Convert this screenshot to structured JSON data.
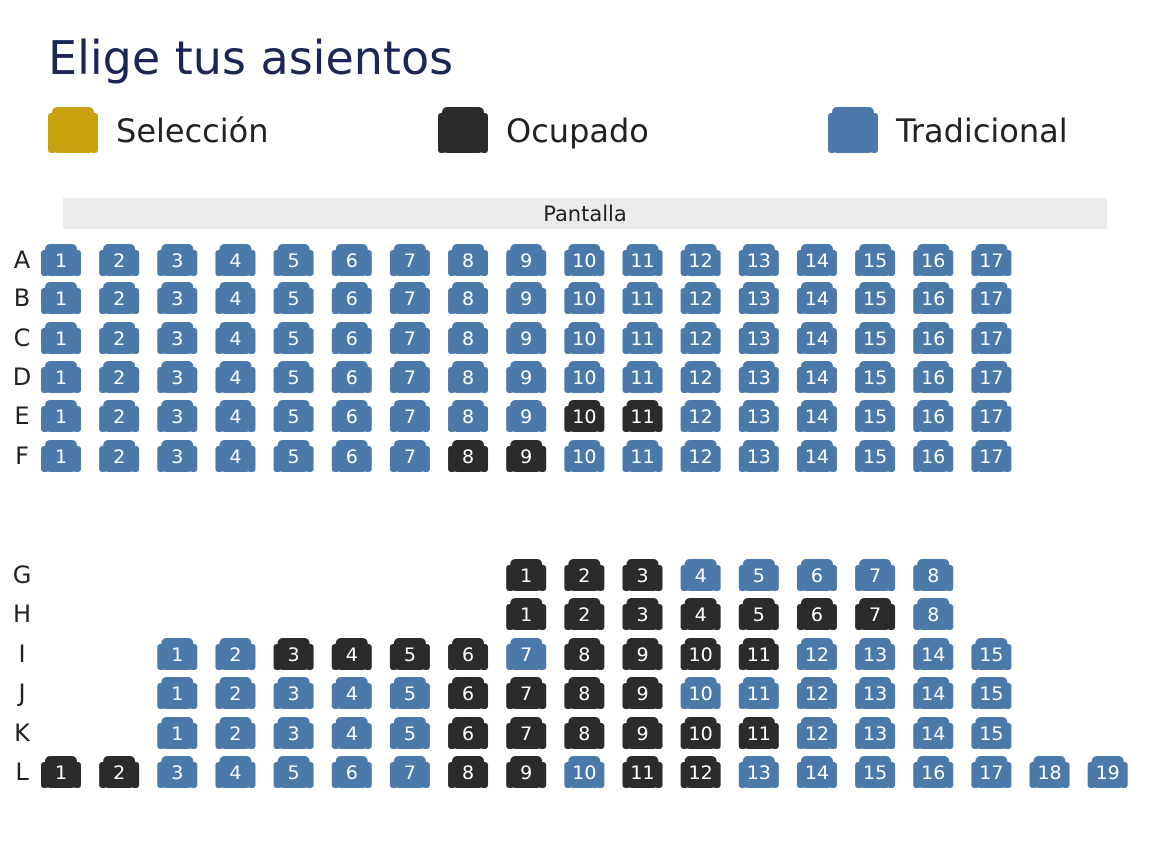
{
  "header": {
    "title": "Elige tus asientos"
  },
  "legend": [
    {
      "label": "Selección",
      "status": "selected"
    },
    {
      "label": "Ocupado",
      "status": "taken"
    },
    {
      "label": "Tradicional",
      "status": "free"
    }
  ],
  "colors": {
    "selected": "#c9a20f",
    "taken": "#2b2b2b",
    "free": "#4a79aa"
  },
  "screen": {
    "label": "Pantalla"
  },
  "rows": [
    {
      "label": "A",
      "seats": [
        {
          "number": 1,
          "status": "free"
        },
        {
          "number": 2,
          "status": "free"
        },
        {
          "number": 3,
          "status": "free"
        },
        {
          "number": 4,
          "status": "free"
        },
        {
          "number": 5,
          "status": "free"
        },
        {
          "number": 6,
          "status": "free"
        },
        {
          "number": 7,
          "status": "free"
        },
        {
          "number": 8,
          "status": "free"
        },
        {
          "number": 9,
          "status": "free"
        },
        {
          "number": 10,
          "status": "free"
        },
        {
          "number": 11,
          "status": "free"
        },
        {
          "number": 12,
          "status": "free"
        },
        {
          "number": 13,
          "status": "free"
        },
        {
          "number": 14,
          "status": "free"
        },
        {
          "number": 15,
          "status": "free"
        },
        {
          "number": 16,
          "status": "free"
        },
        {
          "number": 17,
          "status": "free"
        }
      ]
    },
    {
      "label": "B",
      "seats": [
        {
          "number": 1,
          "status": "free"
        },
        {
          "number": 2,
          "status": "free"
        },
        {
          "number": 3,
          "status": "free"
        },
        {
          "number": 4,
          "status": "free"
        },
        {
          "number": 5,
          "status": "free"
        },
        {
          "number": 6,
          "status": "free"
        },
        {
          "number": 7,
          "status": "free"
        },
        {
          "number": 8,
          "status": "free"
        },
        {
          "number": 9,
          "status": "free"
        },
        {
          "number": 10,
          "status": "free"
        },
        {
          "number": 11,
          "status": "free"
        },
        {
          "number": 12,
          "status": "free"
        },
        {
          "number": 13,
          "status": "free"
        },
        {
          "number": 14,
          "status": "free"
        },
        {
          "number": 15,
          "status": "free"
        },
        {
          "number": 16,
          "status": "free"
        },
        {
          "number": 17,
          "status": "free"
        }
      ]
    },
    {
      "label": "C",
      "seats": [
        {
          "number": 1,
          "status": "free"
        },
        {
          "number": 2,
          "status": "free"
        },
        {
          "number": 3,
          "status": "free"
        },
        {
          "number": 4,
          "status": "free"
        },
        {
          "number": 5,
          "status": "free"
        },
        {
          "number": 6,
          "status": "free"
        },
        {
          "number": 7,
          "status": "free"
        },
        {
          "number": 8,
          "status": "free"
        },
        {
          "number": 9,
          "status": "free"
        },
        {
          "number": 10,
          "status": "free"
        },
        {
          "number": 11,
          "status": "free"
        },
        {
          "number": 12,
          "status": "free"
        },
        {
          "number": 13,
          "status": "free"
        },
        {
          "number": 14,
          "status": "free"
        },
        {
          "number": 15,
          "status": "free"
        },
        {
          "number": 16,
          "status": "free"
        },
        {
          "number": 17,
          "status": "free"
        }
      ]
    },
    {
      "label": "D",
      "seats": [
        {
          "number": 1,
          "status": "free"
        },
        {
          "number": 2,
          "status": "free"
        },
        {
          "number": 3,
          "status": "free"
        },
        {
          "number": 4,
          "status": "free"
        },
        {
          "number": 5,
          "status": "free"
        },
        {
          "number": 6,
          "status": "free"
        },
        {
          "number": 7,
          "status": "free"
        },
        {
          "number": 8,
          "status": "free"
        },
        {
          "number": 9,
          "status": "free"
        },
        {
          "number": 10,
          "status": "free"
        },
        {
          "number": 11,
          "status": "free"
        },
        {
          "number": 12,
          "status": "free"
        },
        {
          "number": 13,
          "status": "free"
        },
        {
          "number": 14,
          "status": "free"
        },
        {
          "number": 15,
          "status": "free"
        },
        {
          "number": 16,
          "status": "free"
        },
        {
          "number": 17,
          "status": "free"
        }
      ]
    },
    {
      "label": "E",
      "seats": [
        {
          "number": 1,
          "status": "free"
        },
        {
          "number": 2,
          "status": "free"
        },
        {
          "number": 3,
          "status": "free"
        },
        {
          "number": 4,
          "status": "free"
        },
        {
          "number": 5,
          "status": "free"
        },
        {
          "number": 6,
          "status": "free"
        },
        {
          "number": 7,
          "status": "free"
        },
        {
          "number": 8,
          "status": "free"
        },
        {
          "number": 9,
          "status": "free"
        },
        {
          "number": 10,
          "status": "taken"
        },
        {
          "number": 11,
          "status": "taken"
        },
        {
          "number": 12,
          "status": "free"
        },
        {
          "number": 13,
          "status": "free"
        },
        {
          "number": 14,
          "status": "free"
        },
        {
          "number": 15,
          "status": "free"
        },
        {
          "number": 16,
          "status": "free"
        },
        {
          "number": 17,
          "status": "free"
        }
      ]
    },
    {
      "label": "F",
      "seats": [
        {
          "number": 1,
          "status": "free"
        },
        {
          "number": 2,
          "status": "free"
        },
        {
          "number": 3,
          "status": "free"
        },
        {
          "number": 4,
          "status": "free"
        },
        {
          "number": 5,
          "status": "free"
        },
        {
          "number": 6,
          "status": "free"
        },
        {
          "number": 7,
          "status": "free"
        },
        {
          "number": 8,
          "status": "taken"
        },
        {
          "number": 9,
          "status": "taken"
        },
        {
          "number": 10,
          "status": "free"
        },
        {
          "number": 11,
          "status": "free"
        },
        {
          "number": 12,
          "status": "free"
        },
        {
          "number": 13,
          "status": "free"
        },
        {
          "number": 14,
          "status": "free"
        },
        {
          "number": 15,
          "status": "free"
        },
        {
          "number": 16,
          "status": "free"
        },
        {
          "number": 17,
          "status": "free"
        }
      ]
    },
    {
      "label": "G",
      "seats": [
        null,
        null,
        null,
        null,
        null,
        null,
        null,
        null,
        {
          "number": 1,
          "status": "taken"
        },
        {
          "number": 2,
          "status": "taken"
        },
        {
          "number": 3,
          "status": "taken"
        },
        {
          "number": 4,
          "status": "free"
        },
        {
          "number": 5,
          "status": "free"
        },
        {
          "number": 6,
          "status": "free"
        },
        {
          "number": 7,
          "status": "free"
        },
        {
          "number": 8,
          "status": "free"
        }
      ]
    },
    {
      "label": "H",
      "seats": [
        null,
        null,
        null,
        null,
        null,
        null,
        null,
        null,
        {
          "number": 1,
          "status": "taken"
        },
        {
          "number": 2,
          "status": "taken"
        },
        {
          "number": 3,
          "status": "taken"
        },
        {
          "number": 4,
          "status": "taken"
        },
        {
          "number": 5,
          "status": "taken"
        },
        {
          "number": 6,
          "status": "taken"
        },
        {
          "number": 7,
          "status": "taken"
        },
        {
          "number": 8,
          "status": "free"
        }
      ]
    },
    {
      "label": "I",
      "seats": [
        null,
        null,
        {
          "number": 1,
          "status": "free"
        },
        {
          "number": 2,
          "status": "free"
        },
        {
          "number": 3,
          "status": "taken"
        },
        {
          "number": 4,
          "status": "taken"
        },
        {
          "number": 5,
          "status": "taken"
        },
        {
          "number": 6,
          "status": "taken"
        },
        {
          "number": 7,
          "status": "free"
        },
        {
          "number": 8,
          "status": "taken"
        },
        {
          "number": 9,
          "status": "taken"
        },
        {
          "number": 10,
          "status": "taken"
        },
        {
          "number": 11,
          "status": "taken"
        },
        {
          "number": 12,
          "status": "free"
        },
        {
          "number": 13,
          "status": "free"
        },
        {
          "number": 14,
          "status": "free"
        },
        {
          "number": 15,
          "status": "free"
        }
      ]
    },
    {
      "label": "J",
      "seats": [
        null,
        null,
        {
          "number": 1,
          "status": "free"
        },
        {
          "number": 2,
          "status": "free"
        },
        {
          "number": 3,
          "status": "free"
        },
        {
          "number": 4,
          "status": "free"
        },
        {
          "number": 5,
          "status": "free"
        },
        {
          "number": 6,
          "status": "taken"
        },
        {
          "number": 7,
          "status": "taken"
        },
        {
          "number": 8,
          "status": "taken"
        },
        {
          "number": 9,
          "status": "taken"
        },
        {
          "number": 10,
          "status": "free"
        },
        {
          "number": 11,
          "status": "free"
        },
        {
          "number": 12,
          "status": "free"
        },
        {
          "number": 13,
          "status": "free"
        },
        {
          "number": 14,
          "status": "free"
        },
        {
          "number": 15,
          "status": "free"
        }
      ]
    },
    {
      "label": "K",
      "seats": [
        null,
        null,
        {
          "number": 1,
          "status": "free"
        },
        {
          "number": 2,
          "status": "free"
        },
        {
          "number": 3,
          "status": "free"
        },
        {
          "number": 4,
          "status": "free"
        },
        {
          "number": 5,
          "status": "free"
        },
        {
          "number": 6,
          "status": "taken"
        },
        {
          "number": 7,
          "status": "taken"
        },
        {
          "number": 8,
          "status": "taken"
        },
        {
          "number": 9,
          "status": "taken"
        },
        {
          "number": 10,
          "status": "taken"
        },
        {
          "number": 11,
          "status": "taken"
        },
        {
          "number": 12,
          "status": "free"
        },
        {
          "number": 13,
          "status": "free"
        },
        {
          "number": 14,
          "status": "free"
        },
        {
          "number": 15,
          "status": "free"
        }
      ]
    },
    {
      "label": "L",
      "seats": [
        {
          "number": 1,
          "status": "taken"
        },
        {
          "number": 2,
          "status": "taken"
        },
        {
          "number": 3,
          "status": "free"
        },
        {
          "number": 4,
          "status": "free"
        },
        {
          "number": 5,
          "status": "free"
        },
        {
          "number": 6,
          "status": "free"
        },
        {
          "number": 7,
          "status": "free"
        },
        {
          "number": 8,
          "status": "taken"
        },
        {
          "number": 9,
          "status": "taken"
        },
        {
          "number": 10,
          "status": "free"
        },
        {
          "number": 11,
          "status": "taken"
        },
        {
          "number": 12,
          "status": "taken"
        },
        {
          "number": 13,
          "status": "free"
        },
        {
          "number": 14,
          "status": "free"
        },
        {
          "number": 15,
          "status": "free"
        },
        {
          "number": 16,
          "status": "free"
        },
        {
          "number": 17,
          "status": "free"
        },
        {
          "number": 18,
          "status": "free"
        },
        {
          "number": 19,
          "status": "free"
        }
      ]
    }
  ]
}
